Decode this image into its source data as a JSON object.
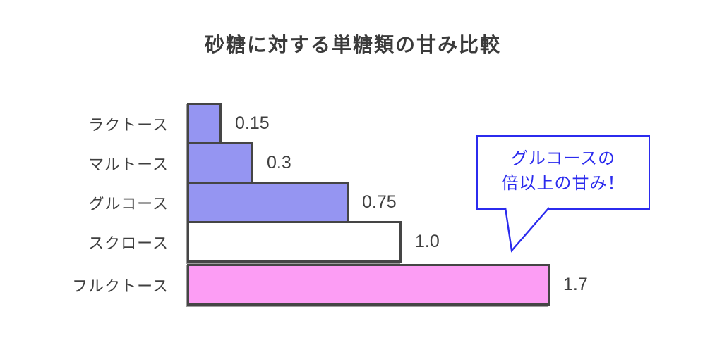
{
  "title": "砂糖に対する単糖類の甘み比較",
  "chart_data": {
    "type": "bar",
    "orientation": "horizontal",
    "title": "砂糖に対する単糖類の甘み比較",
    "categories": [
      "ラクトース",
      "マルトース",
      "グルコース",
      "スクロース",
      "フルクトース"
    ],
    "values": [
      0.15,
      0.3,
      0.75,
      1.0,
      1.7
    ],
    "value_labels": [
      "0.15",
      "0.3",
      "0.75",
      "1.0",
      "1.7"
    ],
    "xlim": [
      0,
      1.7
    ],
    "grid": false,
    "legend": false,
    "bar_colors": [
      "#9595f2",
      "#9595f2",
      "#9595f2",
      "#ffffff",
      "#fc9df4"
    ],
    "bar_border_color": "#454545",
    "gap_before_index": 4,
    "annotation": {
      "lines": [
        "グルコースの",
        "倍以上の甘み！"
      ],
      "color": "#2b2bee",
      "points_to": "フルクトース"
    }
  },
  "colors": {
    "background": "#ffffff",
    "text": "#3f3f3f",
    "purple_bar": "#9595f2",
    "white_bar": "#ffffff",
    "pink_bar": "#fc9df4",
    "bar_border": "#454545",
    "bar_shadow": "#9e9e9e",
    "callout_blue": "#2b2bee"
  }
}
